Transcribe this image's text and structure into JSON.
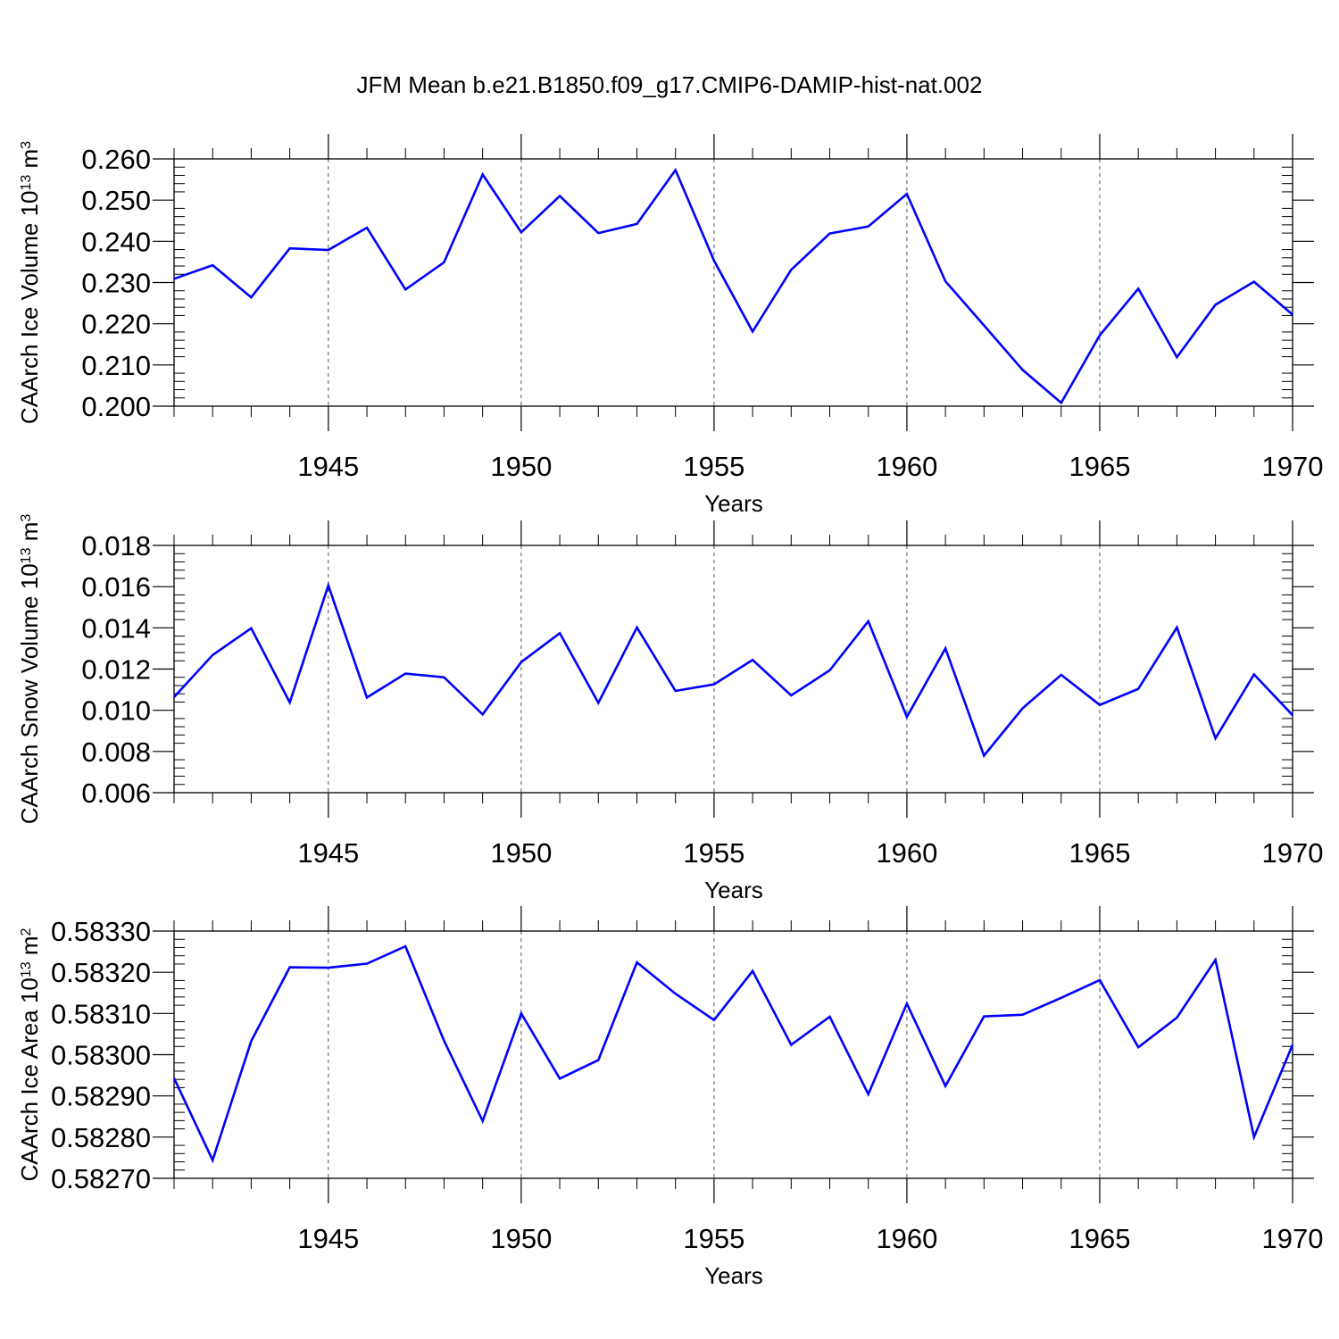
{
  "title": "JFM Mean b.e21.B1850.f09_g17.CMIP6-DAMIP-hist-nat.002",
  "line_color": "#0000ff",
  "chart_data": [
    {
      "type": "line",
      "ylabel": "CAArch Ice Volume 10",
      "ylabel_exp": "13",
      "ylabel_unit": " m",
      "ylabel_unit_exp": "3",
      "xlabel": "Years",
      "xlim": [
        1941,
        1970
      ],
      "ylim": [
        0.2,
        0.26
      ],
      "yticks": [
        0.2,
        0.21,
        0.22,
        0.23,
        0.24,
        0.25,
        0.26
      ],
      "ytick_labels": [
        "0.200",
        "0.210",
        "0.220",
        "0.230",
        "0.240",
        "0.250",
        "0.260"
      ],
      "xticks": [
        1945,
        1950,
        1955,
        1960,
        1965,
        1970
      ],
      "xtick_labels": [
        "1945",
        "1950",
        "1955",
        "1960",
        "1965",
        "1970"
      ],
      "x": [
        1941,
        1942,
        1943,
        1944,
        1945,
        1946,
        1947,
        1948,
        1949,
        1950,
        1951,
        1952,
        1953,
        1954,
        1955,
        1956,
        1957,
        1958,
        1959,
        1960,
        1961,
        1962,
        1963,
        1964,
        1965,
        1966,
        1967,
        1968,
        1969,
        1970
      ],
      "values": [
        0.2309,
        0.2342,
        0.2264,
        0.2383,
        0.2379,
        0.2433,
        0.2283,
        0.2349,
        0.2562,
        0.2422,
        0.251,
        0.242,
        0.2442,
        0.2573,
        0.2353,
        0.2181,
        0.2331,
        0.2419,
        0.2436,
        0.2515,
        0.2303,
        0.2196,
        0.2088,
        0.2008,
        0.2172,
        0.2285,
        0.2119,
        0.2246,
        0.2302,
        0.2222
      ]
    },
    {
      "type": "line",
      "ylabel": "CAArch Snow Volume 10",
      "ylabel_exp": "13",
      "ylabel_unit": " m",
      "ylabel_unit_exp": "3",
      "xlabel": "Years",
      "xlim": [
        1941,
        1970
      ],
      "ylim": [
        0.006,
        0.018
      ],
      "yticks": [
        0.006,
        0.008,
        0.01,
        0.012,
        0.014,
        0.016,
        0.018
      ],
      "ytick_labels": [
        "0.006",
        "0.008",
        "0.010",
        "0.012",
        "0.014",
        "0.016",
        "0.018"
      ],
      "xticks": [
        1945,
        1950,
        1955,
        1960,
        1965,
        1970
      ],
      "xtick_labels": [
        "1945",
        "1950",
        "1955",
        "1960",
        "1965",
        "1970"
      ],
      "x": [
        1941,
        1942,
        1943,
        1944,
        1945,
        1946,
        1947,
        1948,
        1949,
        1950,
        1951,
        1952,
        1953,
        1954,
        1955,
        1956,
        1957,
        1958,
        1959,
        1960,
        1961,
        1962,
        1963,
        1964,
        1965,
        1966,
        1967,
        1968,
        1969,
        1970
      ],
      "values": [
        0.01064,
        0.01268,
        0.01398,
        0.01038,
        0.01606,
        0.01062,
        0.01178,
        0.0116,
        0.0098,
        0.01234,
        0.01374,
        0.01036,
        0.01402,
        0.01094,
        0.01126,
        0.01244,
        0.01072,
        0.01194,
        0.01432,
        0.00968,
        0.013,
        0.0078,
        0.0101,
        0.01172,
        0.01026,
        0.01104,
        0.01402,
        0.00864,
        0.01174,
        0.00976
      ]
    },
    {
      "type": "line",
      "ylabel": "CAArch Ice Area 10",
      "ylabel_exp": "13",
      "ylabel_unit": " m",
      "ylabel_unit_exp": "2",
      "xlabel": "Years",
      "xlim": [
        1941,
        1970
      ],
      "ylim": [
        0.5827,
        0.5833
      ],
      "yticks": [
        0.5827,
        0.5828,
        0.5829,
        0.583,
        0.5831,
        0.5832,
        0.5833
      ],
      "ytick_labels": [
        "0.58270",
        "0.58280",
        "0.58290",
        "0.58300",
        "0.58310",
        "0.58320",
        "0.58330"
      ],
      "xticks": [
        1945,
        1950,
        1955,
        1960,
        1965,
        1970
      ],
      "xtick_labels": [
        "1945",
        "1950",
        "1955",
        "1960",
        "1965",
        "1970"
      ],
      "x": [
        1941,
        1942,
        1943,
        1944,
        1945,
        1946,
        1947,
        1948,
        1949,
        1950,
        1951,
        1952,
        1953,
        1954,
        1955,
        1956,
        1957,
        1958,
        1959,
        1960,
        1961,
        1962,
        1963,
        1964,
        1965,
        1966,
        1967,
        1968,
        1969,
        1970
      ],
      "values": [
        0.582943,
        0.582744,
        0.583033,
        0.583212,
        0.583211,
        0.583221,
        0.583263,
        0.583034,
        0.582839,
        0.5831,
        0.582942,
        0.582987,
        0.583224,
        0.583148,
        0.583084,
        0.583203,
        0.583024,
        0.583092,
        0.582904,
        0.583124,
        0.582924,
        0.583093,
        0.583097,
        0.583138,
        0.583181,
        0.583018,
        0.58309,
        0.58323,
        0.5828,
        0.583024
      ]
    }
  ]
}
